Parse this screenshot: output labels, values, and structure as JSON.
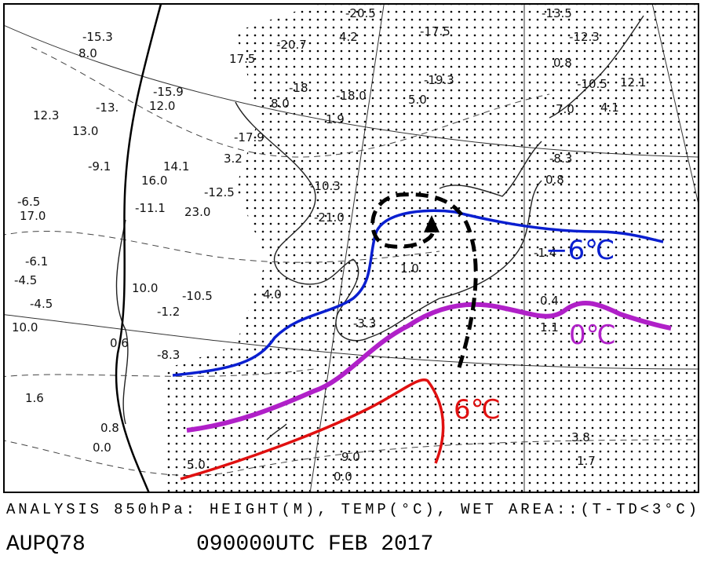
{
  "map": {
    "isotherm_labels": [
      "−6℃",
      "0℃",
      "6℃"
    ],
    "station_values": [
      "-20.5",
      "4.2",
      "-17.5",
      "-13.5",
      "-12.3",
      "-15.3",
      "8.0",
      "-15.9",
      "12.0",
      "17.5",
      "-20.7",
      "-18",
      "-18.0",
      "8.0",
      "1.9",
      "5.0",
      "-19.3",
      "-17.9",
      "3.2",
      "-13.",
      "12.3",
      "13.0",
      "-9.1",
      "14.1",
      "16.0",
      "-12.5",
      "23.0",
      "-11.1",
      "-6.5",
      "17.0",
      "-6.1",
      "-4.5",
      "-4.5",
      "10.0",
      "10.0",
      "-10.5",
      "-1.2",
      "-8.3",
      "0.6",
      "1.6",
      "0.8",
      "0.0",
      "5.0",
      "9.0",
      "0.0",
      "1.0",
      "-3.3",
      "4.0",
      "-8.3",
      "0.8",
      "-10.5",
      "12.1",
      "7.0",
      "4.1",
      "0.8",
      "0.4",
      "1.1",
      "3.8",
      "1.7",
      "-1.4",
      "-21.0",
      "-10.3"
    ],
    "caption": "ANALYSIS 850hPa: HEIGHT(M), TEMP(°C), WET AREA::(T-TD<3°C)",
    "bulletin_id": "AUPQ78",
    "valid_time": "090000UTC FEB 2017"
  }
}
